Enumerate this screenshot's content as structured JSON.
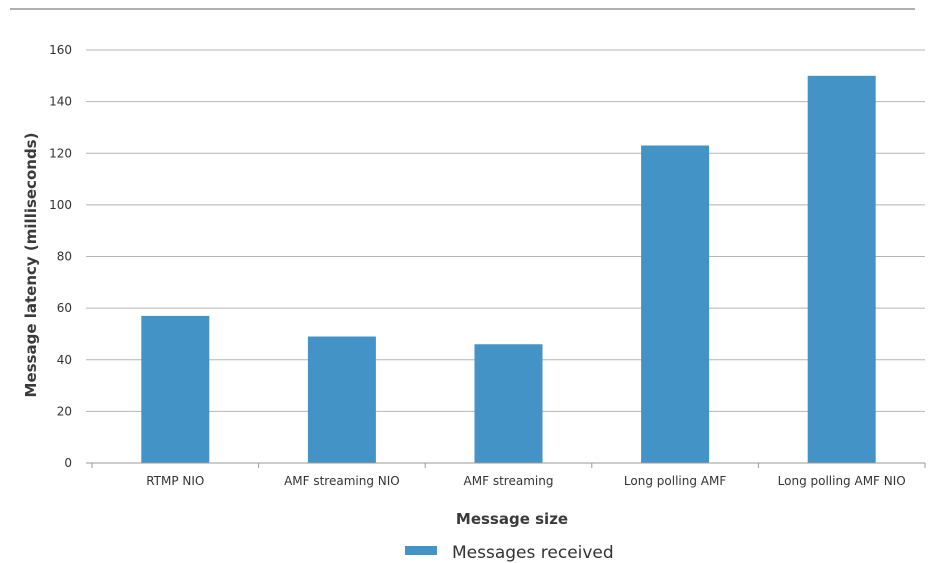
{
  "chart_data": {
    "type": "bar",
    "title": "",
    "xlabel": "Message size",
    "ylabel": "Message latency (milliseconds)",
    "categories": [
      "RTMP NIO",
      "AMF streaming NIO",
      "AMF streaming",
      "Long polling AMF",
      "Long polling AMF NIO"
    ],
    "series": [
      {
        "name": "Messages received",
        "values": [
          57,
          49,
          46,
          123,
          150
        ]
      }
    ],
    "ylim": [
      0,
      160
    ],
    "yticks": [
      "0",
      "20",
      "40",
      "60",
      "80",
      "100",
      "120",
      "140",
      "160"
    ],
    "grid": true,
    "legend_position": "bottom-center",
    "bar_color": "#4393c6",
    "grid_color": "#b5b5b5"
  }
}
